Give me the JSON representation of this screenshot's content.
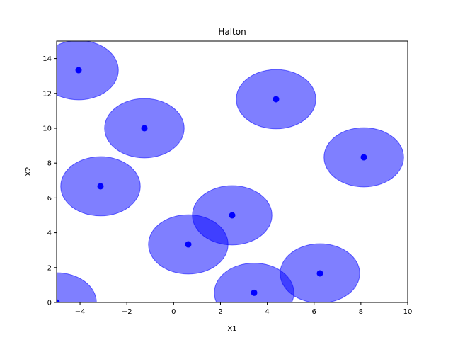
{
  "chart_data": {
    "type": "scatter",
    "title": "Halton",
    "xlabel": "X1",
    "ylabel": "X2",
    "xlim": [
      -5,
      10
    ],
    "ylim": [
      0,
      15
    ],
    "xticks": [
      -4,
      -2,
      0,
      2,
      4,
      6,
      8,
      10
    ],
    "yticks": [
      0,
      2,
      4,
      6,
      8,
      10,
      12,
      14
    ],
    "xtick_labels": [
      "−4",
      "−2",
      "0",
      "2",
      "4",
      "6",
      "8",
      "10"
    ],
    "ytick_labels": [
      "0",
      "2",
      "4",
      "6",
      "8",
      "10",
      "12",
      "14"
    ],
    "grid": false,
    "legend": "none",
    "circle_radius": 1.7,
    "circle_alpha": 0.5,
    "color": "#0000ff",
    "points": [
      {
        "x": -5.0,
        "y": 0.0
      },
      {
        "x": 2.5,
        "y": 5.0
      },
      {
        "x": -1.25,
        "y": 10.0
      },
      {
        "x": 6.25,
        "y": 1.667
      },
      {
        "x": -3.125,
        "y": 6.667
      },
      {
        "x": 4.375,
        "y": 11.667
      },
      {
        "x": 0.625,
        "y": 3.333
      },
      {
        "x": 8.125,
        "y": 8.333
      },
      {
        "x": -4.062,
        "y": 13.333
      },
      {
        "x": 3.438,
        "y": 0.556
      }
    ]
  }
}
